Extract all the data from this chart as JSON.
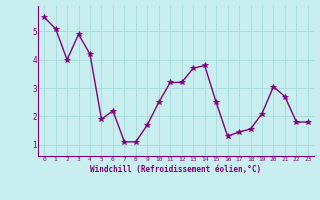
{
  "x": [
    0,
    1,
    2,
    3,
    4,
    5,
    6,
    7,
    8,
    9,
    10,
    11,
    12,
    13,
    14,
    15,
    16,
    17,
    18,
    19,
    20,
    21,
    22,
    23
  ],
  "y": [
    5.5,
    5.1,
    4.0,
    4.9,
    4.2,
    1.9,
    2.2,
    1.1,
    1.1,
    1.7,
    2.5,
    3.2,
    3.2,
    3.7,
    3.8,
    2.5,
    1.3,
    1.45,
    1.55,
    2.1,
    3.05,
    2.7,
    1.8,
    1.8
  ],
  "line_color": "#800080",
  "marker": "*",
  "marker_color": "#800080",
  "bg_color": "#c8eef0",
  "grid_color": "#aadddd",
  "xlabel": "Windchill (Refroidissement éolien,°C)",
  "xlabel_color": "#800080",
  "tick_color": "#800080",
  "ylim": [
    0.6,
    5.9
  ],
  "xlim": [
    -0.5,
    23.5
  ],
  "yticks": [
    1,
    2,
    3,
    4,
    5
  ],
  "xticks": [
    0,
    1,
    2,
    3,
    4,
    5,
    6,
    7,
    8,
    9,
    10,
    11,
    12,
    13,
    14,
    15,
    16,
    17,
    18,
    19,
    20,
    21,
    22,
    23
  ],
  "line_width": 1.0,
  "marker_size": 4
}
